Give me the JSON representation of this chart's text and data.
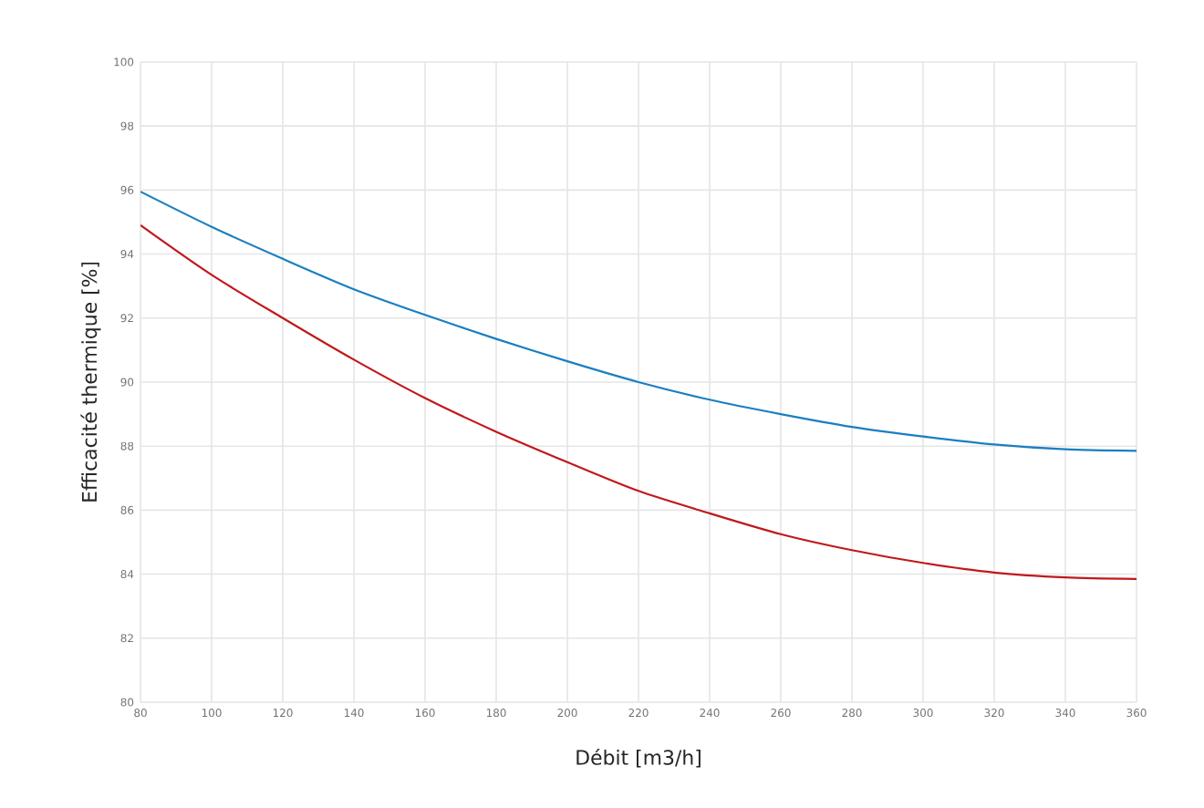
{
  "chart_data": {
    "type": "line",
    "xlabel": "Débit [m3/h]",
    "ylabel": "Efficacité thermique [%]",
    "x": [
      80,
      100,
      120,
      140,
      160,
      180,
      200,
      220,
      240,
      260,
      280,
      300,
      320,
      340,
      360
    ],
    "series": [
      {
        "color": "#1a7fc1",
        "values": [
          95.95,
          94.85,
          93.85,
          92.9,
          92.1,
          91.35,
          90.65,
          90.0,
          89.45,
          89.0,
          88.6,
          88.3,
          88.05,
          87.9,
          87.85
        ]
      },
      {
        "color": "#c0191c",
        "values": [
          94.9,
          93.35,
          92.0,
          90.7,
          89.5,
          88.45,
          87.5,
          86.6,
          85.9,
          85.25,
          84.75,
          84.35,
          84.05,
          83.9,
          83.85
        ]
      }
    ],
    "xlim": [
      80,
      360
    ],
    "ylim": [
      80,
      100
    ],
    "xticks": [
      80,
      100,
      120,
      140,
      160,
      180,
      200,
      220,
      240,
      260,
      280,
      300,
      320,
      340,
      360
    ],
    "yticks": [
      80,
      82,
      84,
      86,
      88,
      90,
      92,
      94,
      96,
      98,
      100
    ],
    "grid": true,
    "marker": "none",
    "line_style": "solid"
  }
}
